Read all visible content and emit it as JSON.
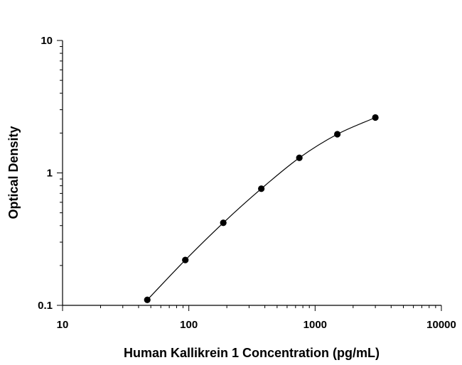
{
  "chart_data": {
    "type": "scatter",
    "xlabel": "Human Kallikrein 1 Concentration (pg/mL)",
    "ylabel": "Optical Density",
    "xscale": "log",
    "yscale": "log",
    "xlim": [
      10,
      10000
    ],
    "ylim": [
      0.1,
      10
    ],
    "xticks": [
      "10",
      "100",
      "1000",
      "10000"
    ],
    "yticks": [
      "0.1",
      "1",
      "10"
    ],
    "grid": false,
    "fit_line": "smooth curve through points",
    "marker_color": "#000000",
    "line_color": "#000000",
    "series": [
      {
        "x": [
          46.9,
          93.8,
          187.5,
          375,
          750,
          1500,
          3000
        ],
        "y": [
          0.11,
          0.22,
          0.42,
          0.76,
          1.3,
          1.96,
          2.62
        ]
      }
    ]
  }
}
